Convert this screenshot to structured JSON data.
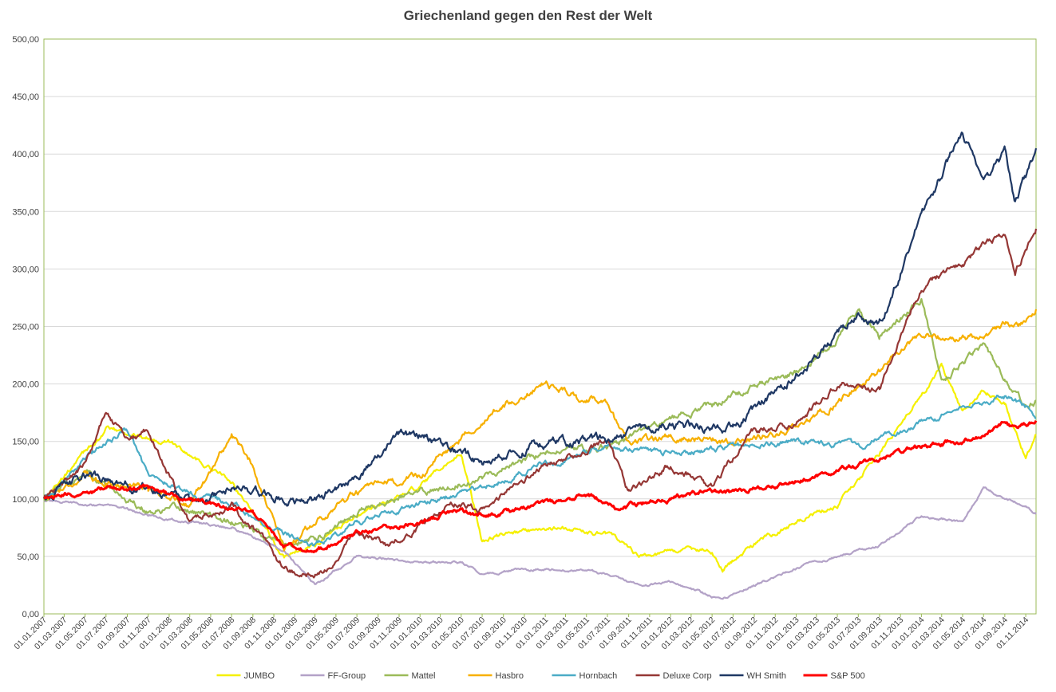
{
  "chart_data": {
    "type": "line",
    "title": "Griechenland gegen den Rest der Welt",
    "xlabel": "",
    "ylabel": "",
    "ylim": [
      0,
      500
    ],
    "yticks": [
      "0,00",
      "50,00",
      "100,00",
      "150,00",
      "200,00",
      "250,00",
      "300,00",
      "350,00",
      "400,00",
      "450,00",
      "500,00"
    ],
    "x_start": "01.01.2007",
    "x_end": "01.12.2014",
    "xticks": [
      "01.01.2007",
      "01.03.2007",
      "01.05.2007",
      "01.07.2007",
      "01.09.2007",
      "01.11.2007",
      "01.01.2008",
      "01.03.2008",
      "01.05.2008",
      "01.07.2008",
      "01.09.2008",
      "01.11.2008",
      "01.01.2009",
      "01.03.2009",
      "01.05.2009",
      "01.07.2009",
      "01.09.2009",
      "01.11.2009",
      "01.01.2010",
      "01.03.2010",
      "01.05.2010",
      "01.07.2010",
      "01.09.2010",
      "01.11.2010",
      "01.01.2011",
      "01.03.2011",
      "01.05.2011",
      "01.07.2011",
      "01.09.2011",
      "01.11.2011",
      "01.01.2012",
      "01.03.2012",
      "01.05.2012",
      "01.07.2012",
      "01.09.2012",
      "01.11.2012",
      "01.01.2013",
      "01.03.2013",
      "01.05.2013",
      "01.07.2013",
      "01.09.2013",
      "01.11.2013",
      "01.01.2014",
      "01.03.2014",
      "01.05.2014",
      "01.07.2014",
      "01.09.2014",
      "01.11.2014"
    ],
    "grid": true,
    "legend_position": "bottom",
    "series": [
      {
        "name": "JUMBO",
        "color": "#f5f000",
        "x": [
          "01.01.2007",
          "01.07.2007",
          "01.01.2008",
          "01.07.2008",
          "01.12.2008",
          "01.03.2009",
          "01.07.2009",
          "01.01.2010",
          "01.05.2010",
          "01.07.2010",
          "01.01.2011",
          "01.07.2011",
          "01.10.2011",
          "01.01.2012",
          "01.05.2012",
          "01.06.2012",
          "01.09.2012",
          "01.01.2013",
          "01.05.2013",
          "01.09.2013",
          "01.01.2014",
          "01.03.2014",
          "01.05.2014",
          "01.07.2014",
          "01.09.2014",
          "01.11.2014",
          "01.12.2014"
        ],
        "values": [
          100,
          160,
          150,
          115,
          50,
          60,
          85,
          110,
          140,
          65,
          75,
          70,
          50,
          55,
          55,
          40,
          60,
          80,
          95,
          140,
          190,
          215,
          175,
          195,
          185,
          135,
          155
        ]
      },
      {
        "name": "FF-Group",
        "color": "#b3a2c7",
        "x": [
          "01.01.2007",
          "01.07.2007",
          "01.01.2008",
          "01.07.2008",
          "01.12.2008",
          "01.03.2009",
          "01.07.2009",
          "01.01.2010",
          "01.05.2010",
          "01.07.2010",
          "01.01.2011",
          "01.07.2011",
          "01.10.2011",
          "01.01.2012",
          "01.06.2012",
          "01.09.2012",
          "01.01.2013",
          "01.05.2013",
          "01.09.2013",
          "01.01.2014",
          "01.05.2014",
          "01.07.2014",
          "01.09.2014",
          "01.11.2014",
          "01.12.2014"
        ],
        "values": [
          98,
          95,
          82,
          75,
          55,
          25,
          50,
          45,
          45,
          35,
          40,
          35,
          25,
          28,
          12,
          25,
          40,
          50,
          60,
          85,
          80,
          110,
          100,
          95,
          88
        ]
      },
      {
        "name": "Mattel",
        "color": "#9bbb59",
        "x": [
          "01.01.2007",
          "01.05.2007",
          "01.07.2007",
          "01.11.2007",
          "01.03.2008",
          "01.07.2008",
          "01.12.2008",
          "01.03.2009",
          "01.07.2009",
          "01.01.2010",
          "01.07.2010",
          "01.01.2011",
          "01.07.2011",
          "01.01.2012",
          "01.05.2012",
          "01.09.2012",
          "01.01.2013",
          "01.05.2013",
          "01.07.2013",
          "01.09.2013",
          "01.01.2014",
          "01.03.2014",
          "01.07.2014",
          "01.09.2014",
          "01.11.2014",
          "01.12.2014"
        ],
        "values": [
          100,
          125,
          110,
          90,
          90,
          80,
          60,
          65,
          90,
          105,
          120,
          140,
          145,
          170,
          180,
          200,
          210,
          240,
          265,
          240,
          275,
          200,
          235,
          205,
          180,
          185
        ]
      },
      {
        "name": "Hasbro",
        "color": "#f7b000",
        "x": [
          "01.01.2007",
          "01.05.2007",
          "01.07.2007",
          "01.11.2007",
          "01.03.2008",
          "01.07.2008",
          "01.09.2008",
          "01.12.2008",
          "01.03.2009",
          "01.05.2009",
          "01.07.2009",
          "01.01.2010",
          "01.07.2010",
          "01.01.2011",
          "01.04.2011",
          "01.07.2011",
          "01.09.2011",
          "01.01.2012",
          "01.07.2012",
          "01.01.2013",
          "01.05.2013",
          "01.09.2013",
          "01.01.2014",
          "01.03.2014",
          "01.07.2014",
          "01.09.2014",
          "01.11.2014",
          "01.12.2014"
        ],
        "values": [
          100,
          120,
          115,
          110,
          95,
          155,
          130,
          55,
          80,
          95,
          105,
          120,
          170,
          200,
          190,
          185,
          145,
          155,
          150,
          160,
          185,
          210,
          245,
          240,
          240,
          250,
          255,
          265
        ]
      },
      {
        "name": "Hornbach",
        "color": "#4bacc6",
        "x": [
          "01.01.2007",
          "01.07.2007",
          "01.09.2007",
          "01.11.2007",
          "01.03.2008",
          "01.07.2008",
          "01.12.2008",
          "01.03.2009",
          "01.07.2009",
          "01.01.2010",
          "01.07.2010",
          "01.01.2011",
          "01.07.2011",
          "01.01.2012",
          "01.07.2012",
          "01.01.2013",
          "01.07.2013",
          "01.01.2014",
          "01.07.2014",
          "01.09.2014",
          "01.11.2014",
          "01.12.2014"
        ],
        "values": [
          100,
          150,
          160,
          120,
          105,
          95,
          70,
          60,
          80,
          95,
          110,
          130,
          145,
          140,
          145,
          150,
          145,
          165,
          185,
          190,
          180,
          170
        ]
      },
      {
        "name": "Deluxe Corp",
        "color": "#953735",
        "x": [
          "01.01.2007",
          "01.05.2007",
          "01.07.2007",
          "01.09.2007",
          "01.11.2007",
          "01.01.2008",
          "01.03.2008",
          "01.07.2008",
          "01.09.2008",
          "01.12.2008",
          "01.03.2009",
          "01.07.2009",
          "01.10.2009",
          "01.01.2010",
          "01.04.2010",
          "01.07.2010",
          "01.11.2010",
          "01.01.2011",
          "01.05.2011",
          "01.07.2011",
          "01.09.2011",
          "01.01.2012",
          "01.05.2012",
          "01.09.2012",
          "01.01.2013",
          "01.05.2013",
          "01.09.2013",
          "01.01.2014",
          "01.05.2014",
          "01.07.2014",
          "01.09.2014",
          "01.10.2014",
          "01.12.2014"
        ],
        "values": [
          100,
          130,
          175,
          150,
          160,
          120,
          80,
          95,
          75,
          40,
          30,
          70,
          60,
          75,
          100,
          90,
          115,
          130,
          140,
          150,
          105,
          130,
          110,
          160,
          165,
          200,
          195,
          285,
          305,
          320,
          330,
          300,
          335
        ]
      },
      {
        "name": "WH Smith",
        "color": "#1f3864",
        "x": [
          "01.01.2007",
          "01.05.2007",
          "01.07.2007",
          "01.11.2007",
          "01.03.2008",
          "01.07.2008",
          "01.12.2008",
          "01.03.2009",
          "01.07.2009",
          "01.11.2009",
          "01.01.2010",
          "01.05.2010",
          "01.07.2010",
          "01.01.2011",
          "01.07.2011",
          "01.01.2012",
          "01.07.2012",
          "01.01.2013",
          "01.07.2013",
          "01.09.2013",
          "01.01.2014",
          "01.05.2014",
          "01.07.2014",
          "01.09.2014",
          "01.10.2014",
          "01.11.2014",
          "01.12.2014"
        ],
        "values": [
          100,
          120,
          115,
          110,
          95,
          110,
          100,
          100,
          120,
          155,
          155,
          140,
          130,
          150,
          150,
          165,
          160,
          210,
          260,
          250,
          345,
          420,
          375,
          400,
          360,
          380,
          405
        ]
      },
      {
        "name": "S&P 500",
        "color": "#ff0000",
        "x": [
          "01.01.2007",
          "01.07.2007",
          "01.11.2007",
          "01.03.2008",
          "01.07.2008",
          "01.09.2008",
          "01.12.2008",
          "01.03.2009",
          "01.07.2009",
          "01.01.2010",
          "01.05.2010",
          "01.07.2010",
          "01.01.2011",
          "01.05.2011",
          "01.08.2011",
          "01.01.2012",
          "01.05.2012",
          "01.07.2012",
          "01.01.2013",
          "01.07.2013",
          "01.01.2014",
          "01.07.2014",
          "01.09.2014",
          "01.10.2014",
          "01.12.2014"
        ],
        "values": [
          100,
          108,
          110,
          98,
          92,
          88,
          60,
          55,
          70,
          80,
          90,
          85,
          95,
          105,
          92,
          100,
          108,
          105,
          115,
          130,
          145,
          155,
          165,
          160,
          168
        ]
      }
    ]
  }
}
